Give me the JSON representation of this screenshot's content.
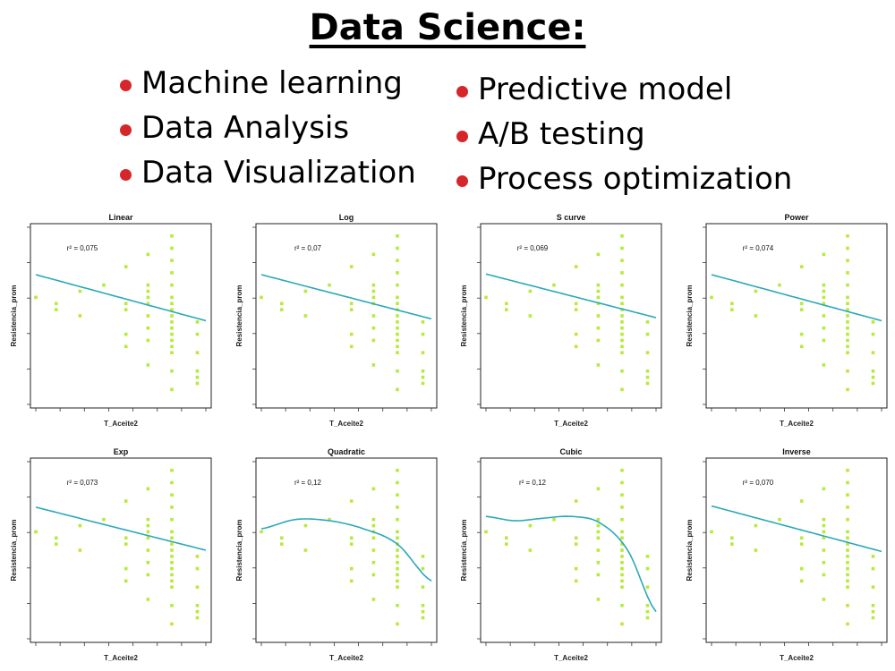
{
  "title": "Data Science:",
  "bullets_left": [
    "Machine learning",
    "Data Analysis",
    "Data Visualization"
  ],
  "bullets_right": [
    "Predictive model",
    "A/B testing",
    "Process optimization"
  ],
  "colors": {
    "bullet": "#d7262a",
    "points": "#b7ea3c",
    "curve": "#2aa9b9",
    "frame": "#222222"
  },
  "chart_data": [
    {
      "type": "scatter",
      "title": "Linear",
      "r2": "r² = 0,075",
      "xlabel": "T_Aceite2",
      "ylabel": "Resistencia_prom",
      "curve": [
        4.17,
        3.42
      ]
    },
    {
      "type": "scatter",
      "title": "Log",
      "r2": "r² = 0,07",
      "xlabel": "T_Aceite2",
      "ylabel": "Resistencia_prom",
      "curve": [
        4.17,
        3.45
      ]
    },
    {
      "type": "scatter",
      "title": "S curve",
      "r2": "r² = 0,069",
      "xlabel": "T_Aceite2",
      "ylabel": "Resistencia_prom",
      "curve": [
        4.18,
        3.47
      ]
    },
    {
      "type": "scatter",
      "title": "Power",
      "r2": "r² = 0,074",
      "xlabel": "T_Aceite2",
      "ylabel": "Resistencia_prom",
      "curve": [
        4.17,
        3.42
      ]
    },
    {
      "type": "scatter",
      "title": "Exp",
      "r2": "r² = 0,073",
      "xlabel": "T_Aceite2",
      "ylabel": "Resistencia_prom",
      "curve": [
        4.2,
        3.5
      ]
    },
    {
      "type": "scatter",
      "title": "Quadratic",
      "r2": "r² = 0,12",
      "xlabel": "T_Aceite2",
      "ylabel": "Resistencia_prom",
      "curve": [
        3.85,
        4.0,
        3.98,
        3.85,
        3.6,
        3.0
      ]
    },
    {
      "type": "scatter",
      "title": "Cubic",
      "r2": "r² = 0,12",
      "xlabel": "T_Aceite2",
      "ylabel": "Resistencia_prom",
      "curve": [
        4.05,
        3.98,
        4.02,
        4.05,
        3.95,
        3.5,
        2.5
      ]
    },
    {
      "type": "scatter",
      "title": "Inverse",
      "r2": "r² = 0,070",
      "xlabel": "T_Aceite2",
      "ylabel": "Resistencia_prom",
      "curve": [
        4.22,
        3.48
      ]
    }
  ]
}
